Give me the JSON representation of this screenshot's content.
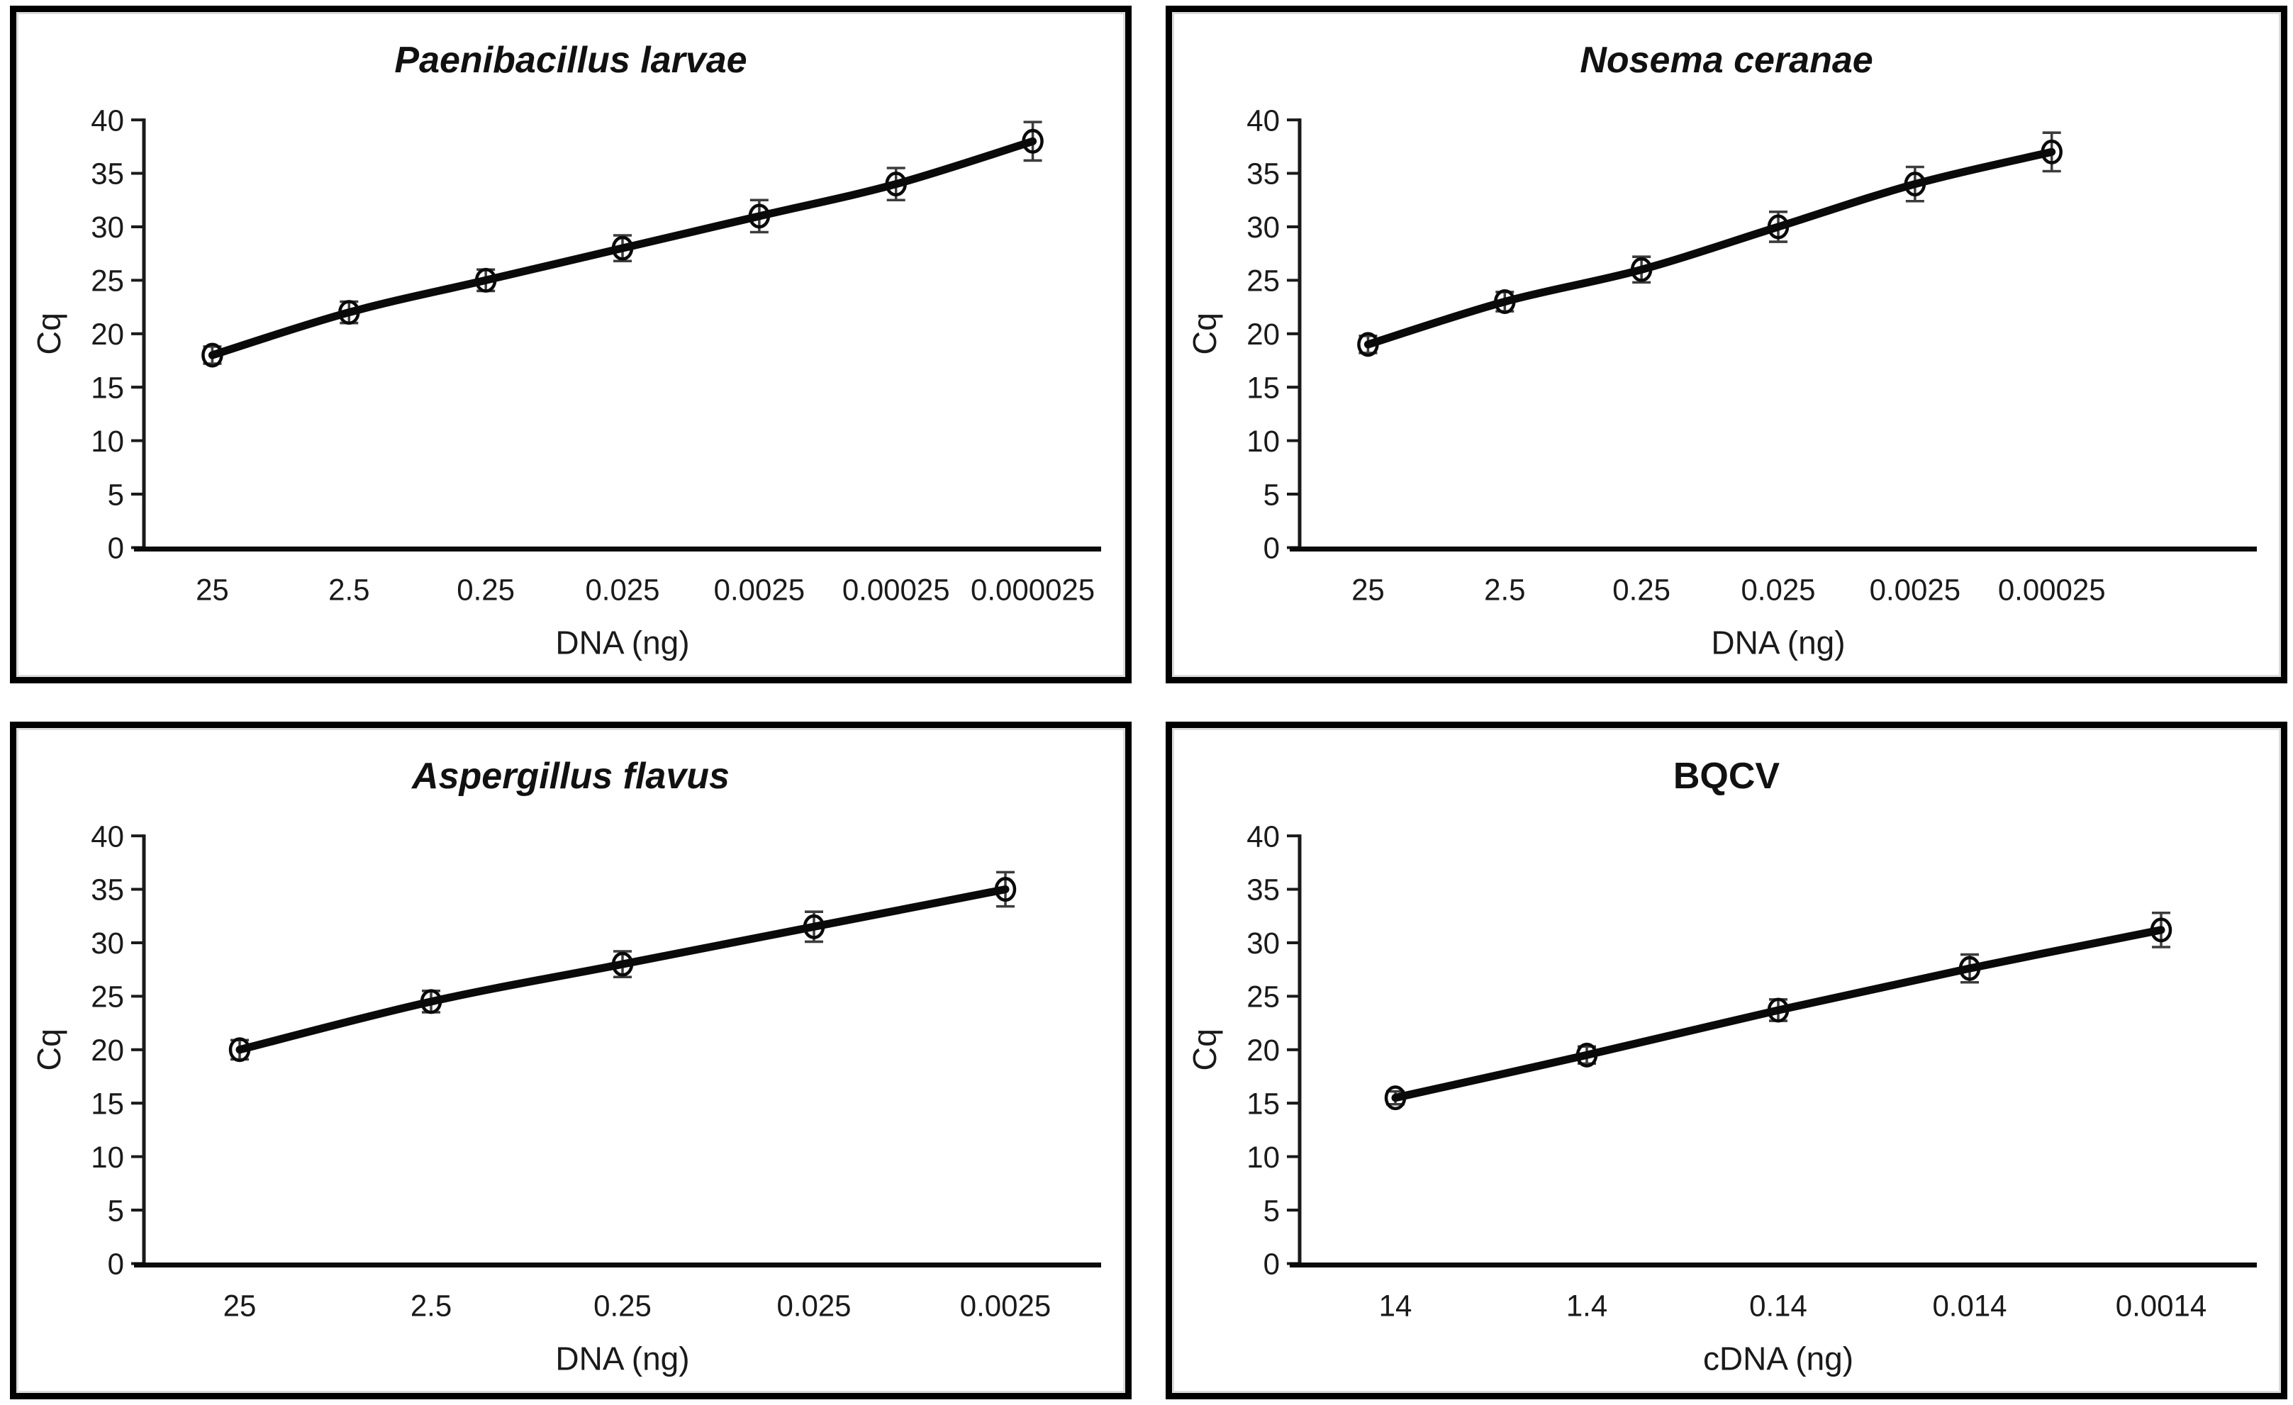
{
  "figure": {
    "background": "#ffffff",
    "panel_border_color": "#000000",
    "panel_inner_ring_color": "#dcdcdc",
    "text_color": "#1a1a1a",
    "line_color": "#0a0a0a",
    "marker_style": "open-circle",
    "error_bar_color": "#3c3c3c",
    "grid": "off",
    "legend": "none"
  },
  "chart_data": [
    {
      "type": "line",
      "title": "Paenibacillus larvae",
      "title_italic": true,
      "xlabel": "DNA (ng)",
      "ylabel": "Cq",
      "categories": [
        "25",
        "2.5",
        "0.25",
        "0.025",
        "0.0025",
        "0.00025",
        "0.000025"
      ],
      "values": [
        18,
        22,
        25,
        28,
        31,
        34,
        38
      ],
      "errors": [
        0.8,
        1.0,
        1.0,
        1.2,
        1.5,
        1.5,
        1.8
      ],
      "x_slots": 7,
      "ylim": [
        0,
        40
      ],
      "ytick_step": 5,
      "yticks": [
        0,
        5,
        10,
        15,
        20,
        25,
        30,
        35,
        40
      ]
    },
    {
      "type": "line",
      "title": "Nosema ceranae",
      "title_italic": true,
      "xlabel": "DNA (ng)",
      "ylabel": "Cq",
      "categories": [
        "25",
        "2.5",
        "0.25",
        "0.025",
        "0.0025",
        "0.00025"
      ],
      "values": [
        19,
        23,
        26,
        30,
        34,
        37
      ],
      "errors": [
        0.8,
        0.9,
        1.2,
        1.4,
        1.6,
        1.8
      ],
      "x_slots": 7,
      "ylim": [
        0,
        40
      ],
      "ytick_step": 5,
      "yticks": [
        0,
        5,
        10,
        15,
        20,
        25,
        30,
        35,
        40
      ]
    },
    {
      "type": "line",
      "title": "Aspergillus flavus",
      "title_italic": true,
      "xlabel": "DNA (ng)",
      "ylabel": "Cq",
      "categories": [
        "25",
        "2.5",
        "0.25",
        "0.025",
        "0.0025"
      ],
      "values": [
        20,
        24.5,
        28,
        31.5,
        35
      ],
      "errors": [
        0.9,
        1.0,
        1.2,
        1.4,
        1.6
      ],
      "x_slots": 5,
      "ylim": [
        0,
        40
      ],
      "ytick_step": 5,
      "yticks": [
        0,
        5,
        10,
        15,
        20,
        25,
        30,
        35,
        40
      ]
    },
    {
      "type": "line",
      "title": "BQCV",
      "title_italic": false,
      "xlabel": "cDNA (ng)",
      "ylabel": "Cq",
      "categories": [
        "14",
        "1.4",
        "0.14",
        "0.014",
        "0.0014"
      ],
      "values": [
        15.5,
        19.5,
        23.7,
        27.6,
        31.2
      ],
      "errors": [
        0.6,
        0.8,
        1.0,
        1.3,
        1.6
      ],
      "x_slots": 5,
      "ylim": [
        0,
        40
      ],
      "ytick_step": 5,
      "yticks": [
        0,
        5,
        10,
        15,
        20,
        25,
        30,
        35,
        40
      ]
    }
  ]
}
